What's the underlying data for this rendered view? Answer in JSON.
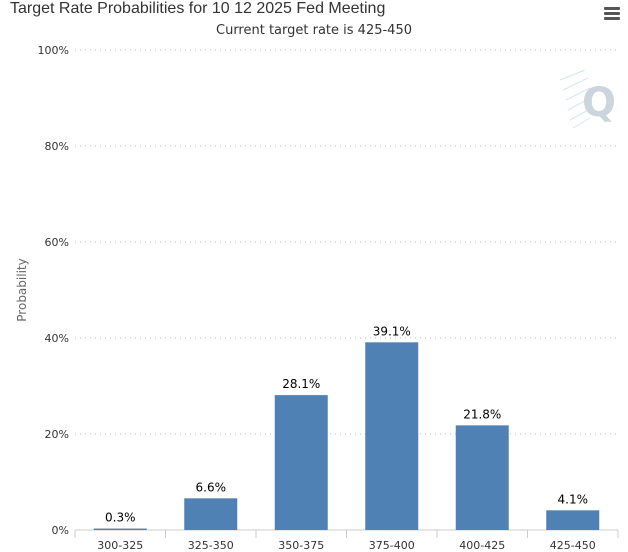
{
  "header": {
    "title": "Target Rate Probabilities for 10 12 2025 Fed Meeting",
    "subtitle": "Current target rate is 425-450",
    "menu_icon": "hamburger-menu-icon"
  },
  "watermark": {
    "text": "Q",
    "color": "#cbd5dc"
  },
  "chart_data": {
    "type": "bar",
    "title": "Target Rate Probabilities for 10 12 2025 Fed Meeting",
    "subtitle": "Current target rate is 425-450",
    "xlabel": "",
    "ylabel": "Probability",
    "categories": [
      "300-325",
      "325-350",
      "350-375",
      "375-400",
      "400-425",
      "425-450"
    ],
    "values": [
      0.3,
      6.6,
      28.1,
      39.1,
      21.8,
      4.1
    ],
    "data_labels": [
      "0.3%",
      "6.6%",
      "28.1%",
      "39.1%",
      "21.8%",
      "4.1%"
    ],
    "ylim": [
      0,
      100
    ],
    "yticks": [
      0,
      20,
      40,
      60,
      80,
      100
    ],
    "ytick_labels": [
      "0%",
      "20%",
      "40%",
      "60%",
      "80%",
      "100%"
    ],
    "grid": true,
    "legend": "none",
    "bar_color": "#5081b5"
  }
}
